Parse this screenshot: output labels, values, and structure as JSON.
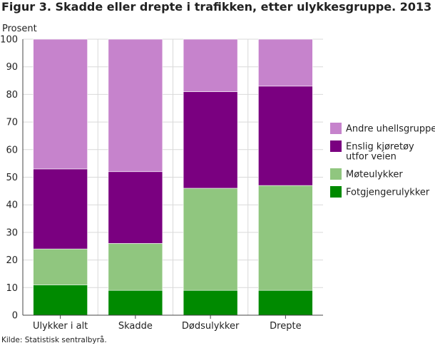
{
  "chart_data": {
    "type": "bar",
    "stacked": true,
    "title": "Figur 3. Skadde eller drepte i trafikken, etter ulykkesgruppe. 2013",
    "ylabel": "Prosent",
    "xlabel": "",
    "ylim": [
      0,
      100
    ],
    "yticks": [
      0,
      10,
      20,
      30,
      40,
      50,
      60,
      70,
      80,
      90,
      100
    ],
    "grid": true,
    "legend_position": "right",
    "categories": [
      "Ulykker i alt",
      "Skadde",
      "Dødsulykker",
      "Drepte"
    ],
    "series": [
      {
        "name": "Fotgjengerulykker",
        "color": "#008a00",
        "values": [
          11,
          9,
          9,
          9
        ]
      },
      {
        "name": "Møteulykker",
        "color": "#90c67f",
        "values": [
          13,
          17,
          37,
          38
        ]
      },
      {
        "name": "Enslig kjøretøy utfor veien",
        "color": "#7a0080",
        "values": [
          29,
          26,
          35,
          36
        ]
      },
      {
        "name": "Andre uhellsgrupper",
        "color": "#c683cc",
        "values": [
          47,
          48,
          19,
          17
        ]
      }
    ],
    "legend_order": [
      3,
      2,
      1,
      0
    ],
    "legend_labels": {
      "Andre uhellsgrupper": [
        "Andre uhellsgrupper"
      ],
      "Enslig kjøretøy utfor veien": [
        "Enslig kjøretøy",
        "utfor veien"
      ],
      "Møteulykker": [
        "Møteulykker"
      ],
      "Fotgjengerulykker": [
        "Fotgjengerulykker"
      ]
    },
    "source": "Kilde: Statistisk sentralbyrå."
  }
}
